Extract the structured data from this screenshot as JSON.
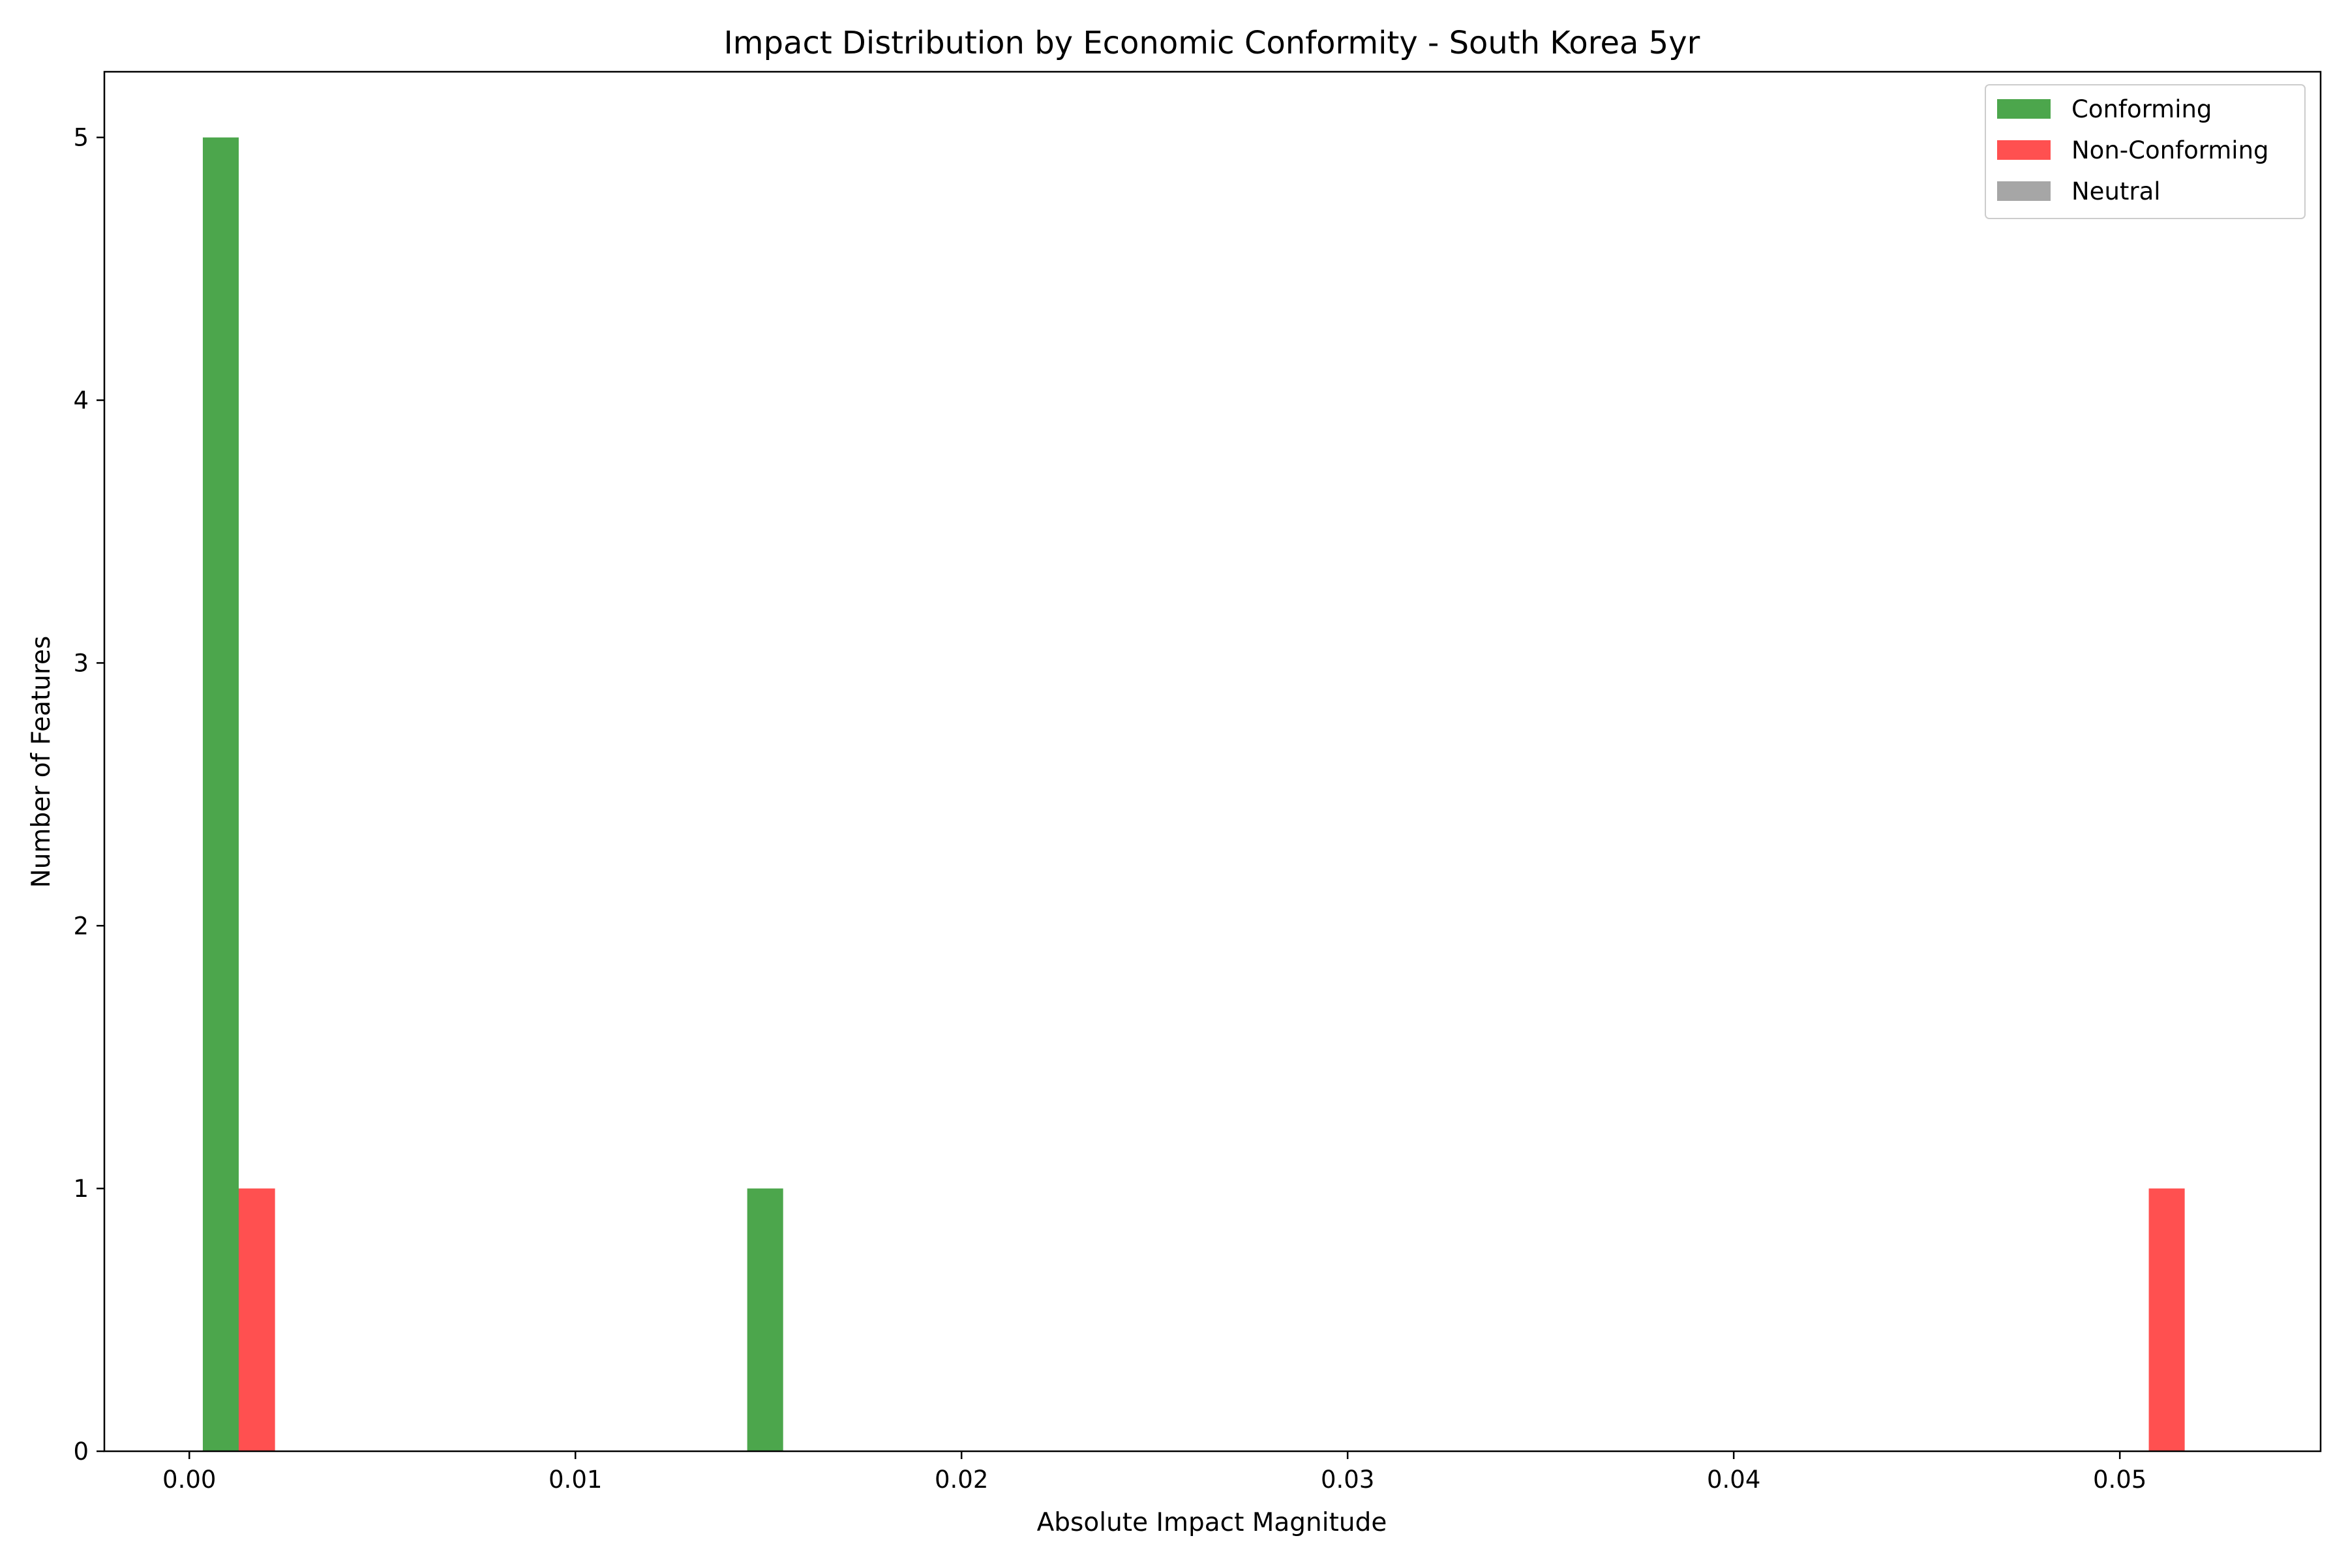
{
  "chart_data": {
    "type": "bar",
    "title": "Impact Distribution by Economic Conformity - South Korea 5yr",
    "xlabel": "Absolute Impact Magnitude",
    "ylabel": "Number of Features",
    "xlim": [
      -0.0022,
      0.0552
    ],
    "ylim": [
      0,
      5.25
    ],
    "xticks": [
      0.0,
      0.01,
      0.02,
      0.03,
      0.04,
      0.05
    ],
    "xtick_labels": [
      "0.00",
      "0.01",
      "0.02",
      "0.03",
      "0.04",
      "0.05"
    ],
    "yticks": [
      0,
      1,
      2,
      3,
      4,
      5
    ],
    "ytick_labels": [
      "0",
      "1",
      "2",
      "3",
      "4",
      "5"
    ],
    "grid": false,
    "legend_position": "top-right",
    "series": [
      {
        "name": "Conforming",
        "color": "#4ca64c",
        "bars": [
          {
            "x0": 0.00035,
            "x1": 0.00128,
            "count": 5
          },
          {
            "x0": 0.01445,
            "x1": 0.01538,
            "count": 1
          }
        ]
      },
      {
        "name": "Non-Conforming",
        "color": "#ff5050",
        "bars": [
          {
            "x0": 0.00128,
            "x1": 0.00222,
            "count": 1
          },
          {
            "x0": 0.05075,
            "x1": 0.05168,
            "count": 1
          }
        ]
      },
      {
        "name": "Neutral",
        "color": "#a6a6a6",
        "bars": []
      }
    ]
  }
}
